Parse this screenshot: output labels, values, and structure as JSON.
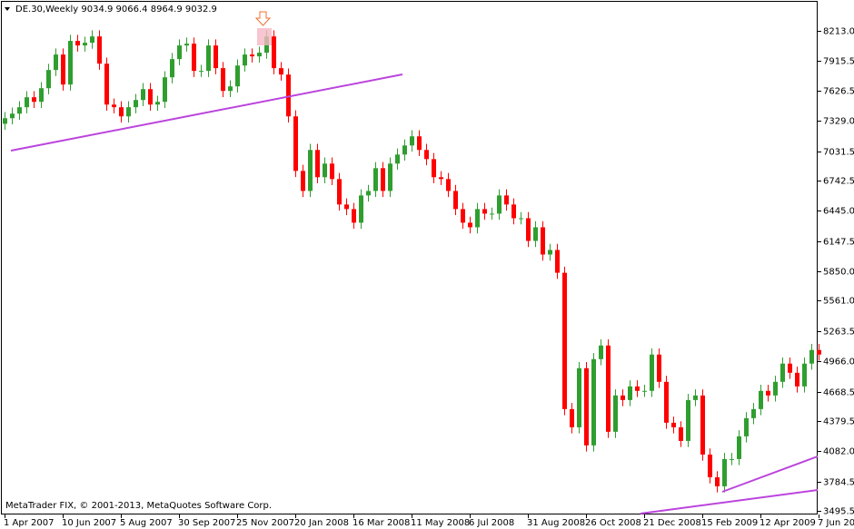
{
  "chart_data": {
    "type": "candlestick",
    "title": "DE.30,Weekly  9034.9 9066.4 8964.9 9032.9",
    "footer": "MetaTrader FIX, © 2001-2013, MetaQuotes Software Corp.",
    "up_color": "#2f9e2f",
    "down_color": "#ff0000",
    "ylim": [
      3469,
      8508
    ],
    "yticks": [
      {
        "value": 8213,
        "label": "8213.0"
      },
      7915.5,
      7626.5,
      {
        "value": 7329,
        "label": "7329.0"
      },
      7031.5,
      6742.5,
      {
        "value": 6445,
        "label": "6445.0"
      },
      6147.5,
      {
        "value": 5850,
        "label": "5850.0"
      },
      {
        "value": 5561,
        "label": "5561.0"
      },
      5263.5,
      {
        "value": 4966,
        "label": "4966.0"
      },
      4668.5,
      4379.5,
      {
        "value": 4082,
        "label": "4082.0"
      },
      3784.5,
      3495.5
    ],
    "categories": [
      "1 Apr 2007",
      null,
      null,
      null,
      null,
      null,
      null,
      null,
      "10 Jun 2007",
      null,
      null,
      null,
      null,
      null,
      null,
      null,
      "5 Aug 2007",
      null,
      null,
      null,
      null,
      null,
      null,
      null,
      "30 Sep 2007",
      null,
      null,
      null,
      null,
      null,
      null,
      null,
      "25 Nov 2007",
      null,
      null,
      null,
      null,
      null,
      null,
      null,
      "20 Jan 2008",
      null,
      null,
      null,
      null,
      null,
      null,
      null,
      "16 Mar 2008",
      null,
      null,
      null,
      null,
      null,
      null,
      null,
      "11 May 2008",
      null,
      null,
      null,
      null,
      null,
      null,
      null,
      "6 Jul 2008",
      null,
      null,
      null,
      null,
      null,
      null,
      null,
      "31 Aug 2008",
      null,
      null,
      null,
      null,
      null,
      null,
      null,
      "26 Oct 2008",
      null,
      null,
      null,
      null,
      null,
      null,
      null,
      "21 Dec 2008",
      null,
      null,
      null,
      null,
      null,
      null,
      null,
      "15 Feb 2009",
      null,
      null,
      null,
      null,
      null,
      null,
      null,
      "12 Apr 2009",
      null,
      null,
      null,
      null,
      null,
      null,
      null,
      "7 Jun 2009"
    ],
    "open": [
      7300,
      7355,
      7400,
      7463,
      7561,
      7516,
      7650,
      7829,
      7981,
      7686,
      8115,
      8070,
      8097,
      8159,
      7891,
      7489,
      7463,
      7373,
      7463,
      7534,
      7641,
      7489,
      7516,
      7757,
      7936,
      8070,
      8088,
      7820,
      7820,
      8070,
      7847,
      7623,
      7668,
      7873,
      7981,
      7963,
      7999,
      8159,
      7847,
      7784,
      7373,
      6837,
      6640,
      7043,
      6775,
      6909,
      6757,
      6507,
      6462,
      6328,
      6596,
      6640,
      6864,
      6640,
      6909,
      6998,
      7087,
      7177,
      7043,
      6953,
      6775,
      6757,
      6640,
      6462,
      6328,
      6283,
      6462,
      6417,
      6417,
      6596,
      6507,
      6372,
      6372,
      6149,
      6283,
      6015,
      6060,
      5836,
      4496,
      4317,
      4898,
      4139,
      4987,
      5121,
      4273,
      4630,
      4585,
      4719,
      4675,
      4675,
      5032,
      4764,
      4362,
      4317,
      4183,
      4585,
      4630,
      4049,
      3826,
      3737,
      4005,
      4005,
      4228,
      4407,
      4496,
      4675,
      4630,
      4764,
      4943,
      4853,
      4719,
      4943,
      5077
    ],
    "high": [
      7415,
      7460,
      7523,
      7621,
      7621,
      7710,
      7889,
      8041,
      8041,
      8175,
      8175,
      8157,
      8219,
      8219,
      7951,
      7549,
      7523,
      7523,
      7594,
      7701,
      7701,
      7576,
      7817,
      7996,
      8130,
      8148,
      8148,
      7880,
      8130,
      8130,
      7907,
      7728,
      7933,
      8041,
      8041,
      8059,
      8219,
      8219,
      7907,
      7844,
      7433,
      6897,
      7103,
      7103,
      6969,
      6969,
      6817,
      6567,
      6522,
      6656,
      6700,
      6924,
      6924,
      6969,
      7058,
      7147,
      7237,
      7237,
      7103,
      7013,
      6835,
      6817,
      6700,
      6522,
      6388,
      6522,
      6522,
      6477,
      6656,
      6656,
      6567,
      6432,
      6432,
      6343,
      6343,
      6120,
      6120,
      5896,
      4556,
      4958,
      4958,
      5047,
      5181,
      5181,
      4690,
      4690,
      4779,
      4779,
      4735,
      5092,
      5092,
      4824,
      4422,
      4377,
      4645,
      4690,
      4690,
      4109,
      3886,
      4065,
      4065,
      4288,
      4467,
      4556,
      4735,
      4735,
      4824,
      5003,
      5003,
      4913,
      5003,
      5137,
      5137
    ],
    "low": [
      7240,
      7295,
      7340,
      7403,
      7456,
      7456,
      7590,
      7769,
      7626,
      7626,
      8010,
      8010,
      8037,
      7831,
      7429,
      7403,
      7313,
      7313,
      7403,
      7474,
      7429,
      7429,
      7456,
      7697,
      7876,
      8010,
      7760,
      7760,
      7760,
      7787,
      7563,
      7563,
      7608,
      7813,
      7903,
      7903,
      7939,
      7787,
      7724,
      7313,
      6777,
      6580,
      6580,
      6715,
      6715,
      6697,
      6447,
      6402,
      6268,
      6268,
      6536,
      6580,
      6580,
      6580,
      6849,
      6938,
      7027,
      6983,
      6893,
      6715,
      6697,
      6580,
      6402,
      6268,
      6223,
      6223,
      6357,
      6357,
      6357,
      6447,
      6312,
      6312,
      6089,
      6089,
      5955,
      5955,
      5776,
      4436,
      4257,
      4257,
      4079,
      4079,
      4927,
      4213,
      4213,
      4525,
      4525,
      4615,
      4615,
      4615,
      4704,
      4302,
      4257,
      4123,
      4123,
      4525,
      3989,
      3766,
      3677,
      3677,
      3945,
      3945,
      4168,
      4347,
      4436,
      4570,
      4570,
      4704,
      4793,
      4659,
      4659,
      4883,
      4972
    ],
    "close": [
      7355,
      7400,
      7463,
      7561,
      7516,
      7650,
      7829,
      7981,
      7686,
      8115,
      8070,
      8097,
      8159,
      7891,
      7489,
      7463,
      7373,
      7463,
      7534,
      7641,
      7489,
      7516,
      7757,
      7936,
      8070,
      8088,
      7820,
      7820,
      8070,
      7847,
      7623,
      7668,
      7873,
      7981,
      7963,
      7999,
      8159,
      7847,
      7784,
      7373,
      6837,
      6640,
      7043,
      6775,
      6909,
      6757,
      6507,
      6462,
      6328,
      6596,
      6640,
      6864,
      6640,
      6909,
      6998,
      7087,
      7177,
      7043,
      6953,
      6775,
      6757,
      6640,
      6462,
      6328,
      6283,
      6462,
      6417,
      6417,
      6596,
      6507,
      6372,
      6372,
      6149,
      6283,
      6015,
      6060,
      5836,
      4496,
      4317,
      4898,
      4139,
      4987,
      5121,
      4273,
      4630,
      4585,
      4719,
      4675,
      4675,
      5032,
      4764,
      4362,
      4317,
      4183,
      4585,
      4630,
      4049,
      3826,
      3737,
      4005,
      4005,
      4228,
      4407,
      4496,
      4675,
      4630,
      4764,
      4943,
      4853,
      4719,
      4943,
      5077,
      5032
    ]
  }
}
